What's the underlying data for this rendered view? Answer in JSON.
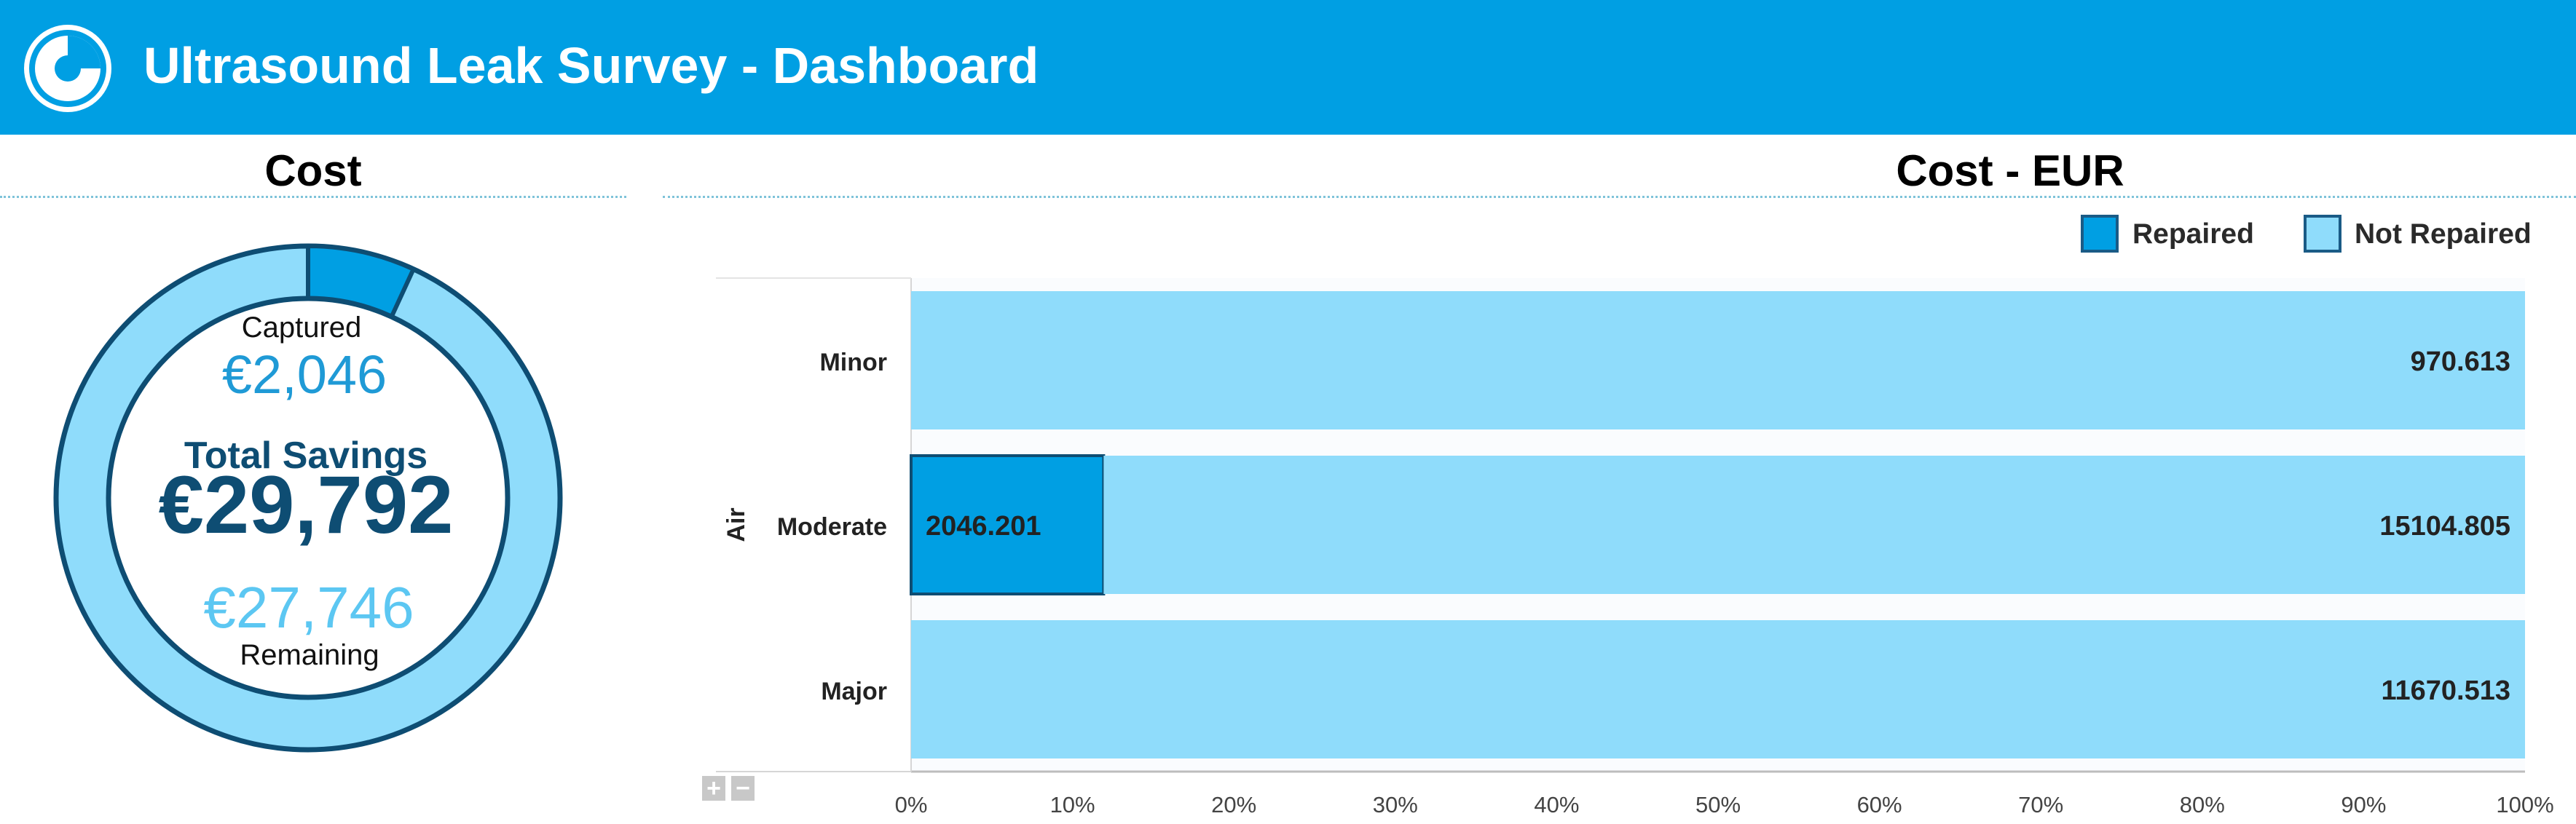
{
  "header": {
    "title": "Ultrasound Leak Survey - Dashboard",
    "colors": {
      "background": "#009fe3",
      "text": "#ffffff"
    },
    "logo_icon": "dashboard-logo-icon"
  },
  "cost_panel": {
    "title": "Cost",
    "donut": {
      "captured_label": "Captured",
      "captured_value": "€2,046",
      "total_label": "Total Savings",
      "total_value": "€29,792",
      "remaining_value": "€27,746",
      "remaining_label": "Remaining",
      "colors": {
        "captured": "#009fe3",
        "remaining": "#8fdcfb",
        "outline": "#0e4d73",
        "total_text": "#0e4d73",
        "remaining_text": "#5cc7f2"
      }
    }
  },
  "chart_data": [
    {
      "type": "pie",
      "title": "Cost",
      "categories": [
        "Captured",
        "Remaining"
      ],
      "values": [
        2046.201,
        27745.931
      ],
      "colors": [
        "#009fe3",
        "#8fdcfb"
      ]
    },
    {
      "type": "bar",
      "orientation": "horizontal",
      "stacked": "percent",
      "title": "Cost - EUR",
      "group_label": "Air",
      "categories": [
        "Minor",
        "Moderate",
        "Major"
      ],
      "series": [
        {
          "name": "Repaired",
          "values": [
            0,
            2046.201,
            0
          ],
          "color": "#009fe3"
        },
        {
          "name": "Not Repaired",
          "values": [
            970.613,
            15104.805,
            11670.513
          ],
          "color": "#8fdcfb"
        }
      ],
      "data_labels": [
        [
          "",
          "2046.201",
          ""
        ],
        [
          "970.613",
          "15104.805",
          "11670.513"
        ]
      ],
      "xlim": [
        0,
        100
      ],
      "xticks": [
        "0%",
        "10%",
        "20%",
        "30%",
        "40%",
        "50%",
        "60%",
        "70%",
        "80%",
        "90%",
        "100%"
      ],
      "legend": "top-right"
    }
  ],
  "controls": {
    "expand_label": "+",
    "collapse_label": "−"
  }
}
